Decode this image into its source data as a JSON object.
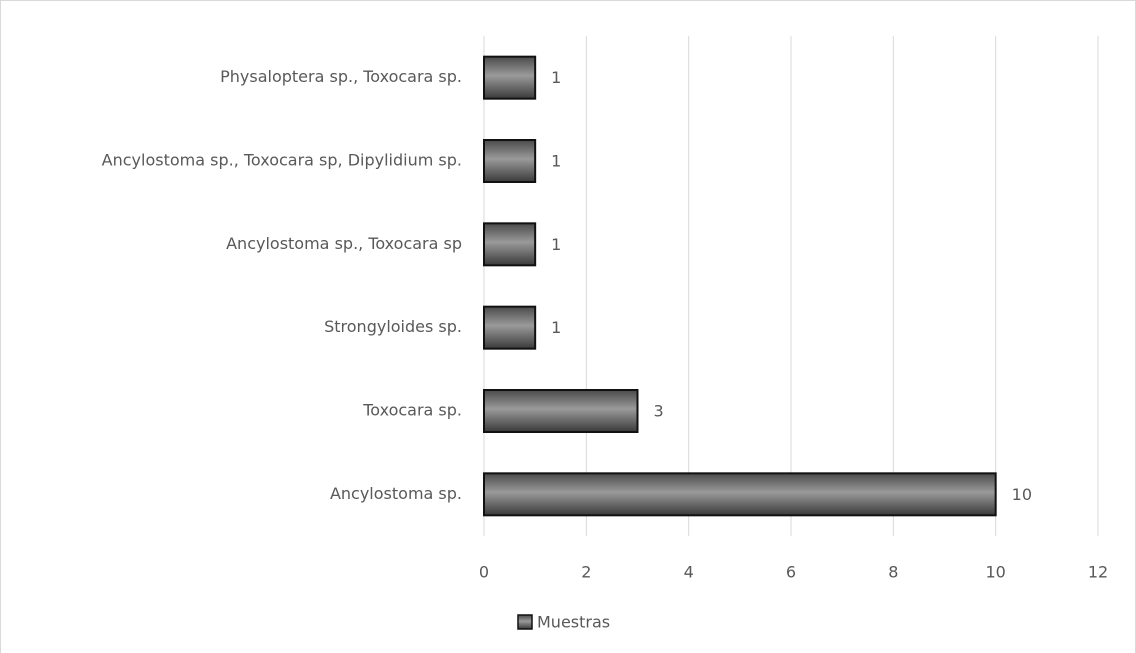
{
  "chart_data": {
    "type": "bar",
    "orientation": "horizontal",
    "categories": [
      "Ancylostoma sp.",
      "Toxocara sp.",
      "Strongyloides sp.",
      "Ancylostoma sp., Toxocara sp",
      "Ancylostoma sp., Toxocara sp, Dipylidium sp.",
      "Physaloptera sp., Toxocara sp."
    ],
    "series": [
      {
        "name": "Muestras",
        "color": "#666666",
        "values": [
          10,
          3,
          1,
          1,
          1,
          1
        ]
      }
    ],
    "xlim": [
      0,
      12
    ],
    "xticks": [
      0,
      2,
      4,
      6,
      8,
      10,
      12
    ],
    "grid": true,
    "legend": "bottom"
  }
}
